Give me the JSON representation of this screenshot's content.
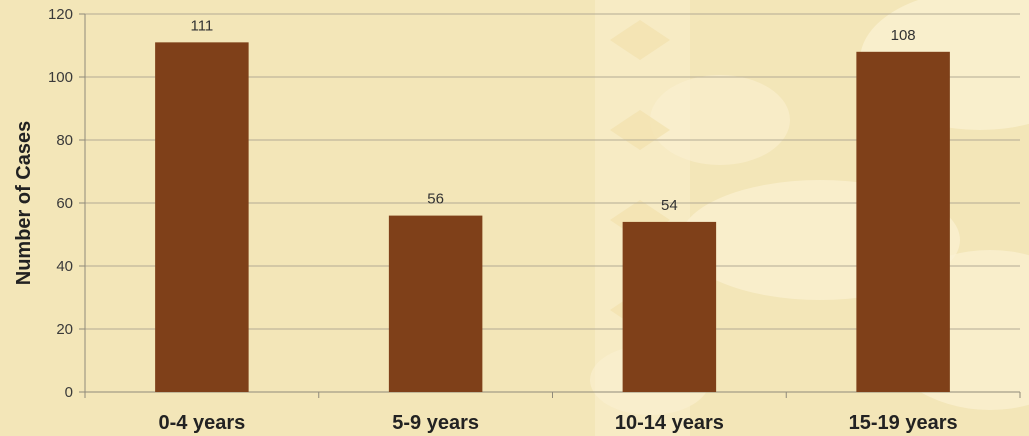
{
  "chart_data": {
    "type": "bar",
    "title": "",
    "xlabel": "",
    "ylabel": "Number of Cases",
    "categories": [
      "0-4 years",
      "5-9 years",
      "10-14 years",
      "15-19 years"
    ],
    "values": [
      111,
      56,
      54,
      108
    ],
    "data_labels": [
      "111",
      "56",
      "54",
      "108"
    ],
    "ylim": [
      0,
      120
    ],
    "yticks": [
      0,
      20,
      40,
      60,
      80,
      100,
      120
    ],
    "ytick_labels": [
      "0",
      "20",
      "40",
      "60",
      "80",
      "100",
      "120"
    ],
    "grid": true,
    "legend": "none",
    "bar_color": "#7f4019",
    "grid_color": "#b3ab95",
    "background_color": "#f3e6b8",
    "pattern_color": "#fbf1d3"
  }
}
